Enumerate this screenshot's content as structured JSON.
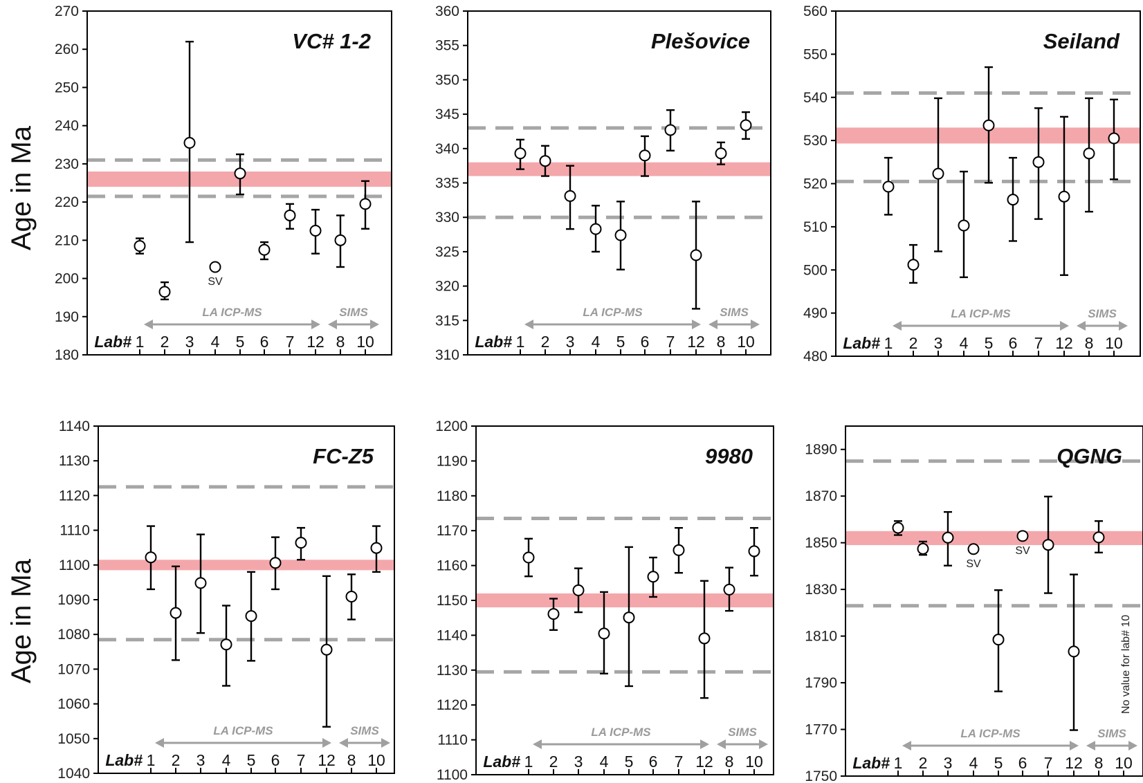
{
  "figure": {
    "ylabel": "Age in Ma",
    "lab_prefix": "Lab#",
    "labs": [
      "1",
      "2",
      "3",
      "4",
      "5",
      "6",
      "7",
      "12",
      "8",
      "10"
    ],
    "method_la": "LA ICP-MS",
    "method_sims": "SIMS",
    "sv_label": "SV",
    "colors": {
      "band": "#f4a7ab",
      "dash": "#a6a6a6",
      "arrow": "#a0a0a0",
      "point": "#000000"
    }
  },
  "chart_data": [
    {
      "type": "scatter",
      "title": "VC# 1-2",
      "ylabel": "Age in Ma",
      "ylim": [
        180,
        270
      ],
      "yticks": [
        270,
        260,
        250,
        240,
        230,
        220,
        210,
        200,
        190,
        180
      ],
      "reference_band": [
        224,
        228
      ],
      "reference_dashes": [
        231,
        221.5
      ],
      "points": [
        {
          "lab": "1",
          "y": 208.5,
          "err": [
            206.5,
            210.5
          ]
        },
        {
          "lab": "2",
          "y": 196.5,
          "err": [
            194.5,
            199
          ]
        },
        {
          "lab": "3",
          "y": 235.5,
          "err": [
            209.5,
            262
          ]
        },
        {
          "lab": "4",
          "y": 203,
          "sv": true
        },
        {
          "lab": "5",
          "y": 227.5,
          "err": [
            222,
            232.5
          ]
        },
        {
          "lab": "6",
          "y": 207.5,
          "err": [
            205,
            209.5
          ]
        },
        {
          "lab": "7",
          "y": 216.5,
          "err": [
            213,
            219.5
          ]
        },
        {
          "lab": "12",
          "y": 212.5,
          "err": [
            206.5,
            218
          ]
        },
        {
          "lab": "8",
          "y": 210,
          "err": [
            203,
            216.5
          ]
        },
        {
          "lab": "10",
          "y": 219.5,
          "err": [
            213,
            225.5
          ]
        }
      ]
    },
    {
      "type": "scatter",
      "title": "Plešovice",
      "ylabel": "",
      "ylim": [
        310,
        360
      ],
      "yticks": [
        360,
        355,
        350,
        345,
        340,
        335,
        330,
        325,
        320,
        315,
        310
      ],
      "reference_band": [
        336,
        338
      ],
      "reference_dashes": [
        343,
        330
      ],
      "points": [
        {
          "lab": "1",
          "y": 339.3,
          "err": [
            337,
            341.3
          ]
        },
        {
          "lab": "2",
          "y": 338.2,
          "err": [
            336,
            340.4
          ]
        },
        {
          "lab": "3",
          "y": 333.1,
          "err": [
            328.3,
            337.5
          ]
        },
        {
          "lab": "4",
          "y": 328.3,
          "err": [
            325,
            331.7
          ]
        },
        {
          "lab": "5",
          "y": 327.4,
          "err": [
            322.4,
            332.3
          ]
        },
        {
          "lab": "6",
          "y": 339,
          "err": [
            336,
            341.8
          ]
        },
        {
          "lab": "7",
          "y": 342.7,
          "err": [
            339.7,
            345.6
          ]
        },
        {
          "lab": "12",
          "y": 324.5,
          "err": [
            316.7,
            332.3
          ]
        },
        {
          "lab": "8",
          "y": 339.3,
          "err": [
            337.7,
            340.9
          ]
        },
        {
          "lab": "10",
          "y": 343.4,
          "err": [
            341.4,
            345.3
          ]
        }
      ]
    },
    {
      "type": "scatter",
      "title": "Seiland",
      "ylabel": "",
      "ylim": [
        480,
        560
      ],
      "yticks": [
        560,
        550,
        540,
        530,
        520,
        510,
        500,
        490,
        480
      ],
      "reference_band": [
        529.3,
        533
      ],
      "reference_dashes": [
        541,
        520.5
      ],
      "points": [
        {
          "lab": "1",
          "y": 519.3,
          "err": [
            512.8,
            526
          ]
        },
        {
          "lab": "2",
          "y": 501.2,
          "err": [
            497,
            505.8
          ]
        },
        {
          "lab": "3",
          "y": 522.3,
          "err": [
            504.3,
            539.8
          ]
        },
        {
          "lab": "4",
          "y": 510.3,
          "err": [
            498.3,
            522.8
          ]
        },
        {
          "lab": "5",
          "y": 533.5,
          "err": [
            520.2,
            547
          ]
        },
        {
          "lab": "6",
          "y": 516.3,
          "err": [
            506.7,
            526
          ]
        },
        {
          "lab": "7",
          "y": 525,
          "err": [
            511.8,
            537.5
          ]
        },
        {
          "lab": "12",
          "y": 517,
          "err": [
            498.8,
            535.5
          ]
        },
        {
          "lab": "8",
          "y": 527,
          "err": [
            513.5,
            539.8
          ]
        },
        {
          "lab": "10",
          "y": 530.5,
          "err": [
            521,
            539.5
          ]
        }
      ]
    },
    {
      "type": "scatter",
      "title": "FC-Z5",
      "ylabel": "Age in Ma",
      "ylim": [
        1040,
        1140
      ],
      "yticks": [
        1140,
        1130,
        1120,
        1110,
        1100,
        1090,
        1080,
        1070,
        1060,
        1050,
        1040
      ],
      "reference_band": [
        1098.5,
        1101.5
      ],
      "reference_dashes": [
        1122.5,
        1078.5
      ],
      "points": [
        {
          "lab": "1",
          "y": 1102.2,
          "err": [
            1093,
            1111.2
          ]
        },
        {
          "lab": "2",
          "y": 1086.2,
          "err": [
            1072.6,
            1099.6
          ]
        },
        {
          "lab": "3",
          "y": 1094.8,
          "err": [
            1080.4,
            1108.8
          ]
        },
        {
          "lab": "4",
          "y": 1077.1,
          "err": [
            1065.2,
            1088.3
          ]
        },
        {
          "lab": "5",
          "y": 1085.3,
          "err": [
            1072.4,
            1098
          ]
        },
        {
          "lab": "6",
          "y": 1100.6,
          "err": [
            1093,
            1108
          ]
        },
        {
          "lab": "7",
          "y": 1106.4,
          "err": [
            1101.5,
            1110.7
          ]
        },
        {
          "lab": "12",
          "y": 1075.6,
          "err": [
            1053.4,
            1096.8
          ]
        },
        {
          "lab": "8",
          "y": 1090.9,
          "err": [
            1084.3,
            1097.3
          ]
        },
        {
          "lab": "10",
          "y": 1104.9,
          "err": [
            1098,
            1111.2
          ]
        }
      ]
    },
    {
      "type": "scatter",
      "title": "9980",
      "ylabel": "",
      "ylim": [
        1100,
        1200
      ],
      "yticks": [
        1200,
        1190,
        1180,
        1170,
        1160,
        1150,
        1140,
        1130,
        1120,
        1110,
        1100
      ],
      "reference_band": [
        1148,
        1152
      ],
      "reference_dashes": [
        1173.5,
        1129.5
      ],
      "points": [
        {
          "lab": "1",
          "y": 1162.3,
          "err": [
            1156.9,
            1167.7
          ]
        },
        {
          "lab": "2",
          "y": 1146.1,
          "err": [
            1141.5,
            1150.5
          ]
        },
        {
          "lab": "3",
          "y": 1152.9,
          "err": [
            1146.6,
            1159.2
          ]
        },
        {
          "lab": "4",
          "y": 1140.5,
          "err": [
            1129,
            1152.4
          ]
        },
        {
          "lab": "5",
          "y": 1145.1,
          "err": [
            1125.4,
            1165.3
          ]
        },
        {
          "lab": "6",
          "y": 1156.8,
          "err": [
            1151,
            1162.3
          ]
        },
        {
          "lab": "7",
          "y": 1164.4,
          "err": [
            1157.9,
            1170.8
          ]
        },
        {
          "lab": "12",
          "y": 1139.1,
          "err": [
            1122,
            1155.6
          ]
        },
        {
          "lab": "8",
          "y": 1153.1,
          "err": [
            1147,
            1159.4
          ]
        },
        {
          "lab": "10",
          "y": 1164.1,
          "err": [
            1157.1,
            1170.8
          ]
        }
      ]
    },
    {
      "type": "scatter",
      "title": "QGNG",
      "ylabel": "",
      "ylim": [
        1750,
        1900
      ],
      "yticks": [
        1890,
        1870,
        1850,
        1830,
        1810,
        1790,
        1770,
        1750
      ],
      "reference_band": [
        1849,
        1855
      ],
      "reference_dashes": [
        1885,
        1823
      ],
      "note": "No value for lab# 10",
      "points": [
        {
          "lab": "1",
          "y": 1856.4,
          "err": [
            1853.3,
            1859.3
          ]
        },
        {
          "lab": "2",
          "y": 1847.4,
          "err": [
            1844.8,
            1850.5
          ]
        },
        {
          "lab": "3",
          "y": 1852.2,
          "err": [
            1840.2,
            1863.2
          ]
        },
        {
          "lab": "4",
          "y": 1847.3,
          "sv": true
        },
        {
          "lab": "5",
          "y": 1808.5,
          "err": [
            1786.3,
            1829.7
          ]
        },
        {
          "lab": "6",
          "y": 1852.9,
          "sv": true
        },
        {
          "lab": "7",
          "y": 1849.1,
          "err": [
            1828.4,
            1869.8
          ]
        },
        {
          "lab": "12",
          "y": 1803.4,
          "err": [
            1769.7,
            1836.4
          ]
        },
        {
          "lab": "8",
          "y": 1852.3,
          "err": [
            1845.8,
            1859.3
          ]
        }
      ]
    }
  ]
}
